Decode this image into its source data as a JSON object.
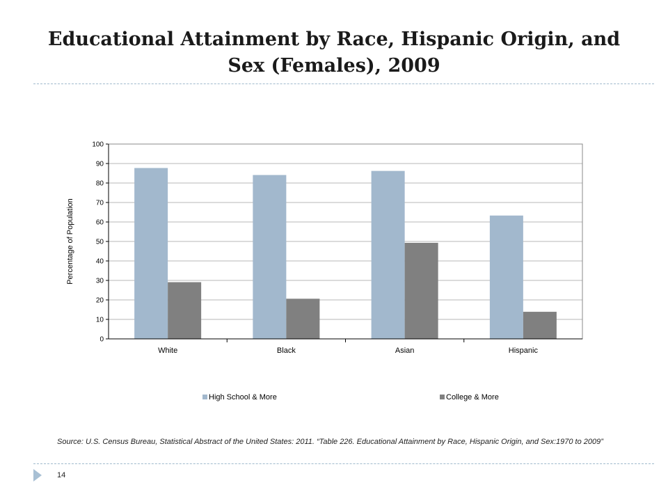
{
  "slide": {
    "title": "Educational Attainment by Race, Hispanic Origin, and Sex (Females), 2009",
    "source": "Source: U.S. Census Bureau, Statistical Abstract of the United States: 2011. “Table 226. Educational Attainment by Race, Hispanic Origin, and Sex:1970 to 2009”",
    "page_number": "14"
  },
  "colors": {
    "high_school": "#a2b8cd",
    "college": "#808080",
    "grid": "#b7b7b7",
    "accent": "#a8c0d4"
  },
  "chart_data": {
    "type": "bar",
    "title": "",
    "xlabel": "",
    "ylabel": "Percentage of Population",
    "categories": [
      "White",
      "Black",
      "Asian",
      "Hispanic"
    ],
    "series": [
      {
        "name": "High School & More",
        "values": [
          87.7,
          84.1,
          86.2,
          63.3
        ]
      },
      {
        "name": "College & More",
        "values": [
          29.1,
          20.6,
          49.3,
          13.9
        ]
      }
    ],
    "ylim": [
      0,
      100
    ],
    "yticks": [
      0,
      10,
      20,
      30,
      40,
      50,
      60,
      70,
      80,
      90,
      100
    ],
    "grid": true,
    "legend_position": "bottom"
  }
}
